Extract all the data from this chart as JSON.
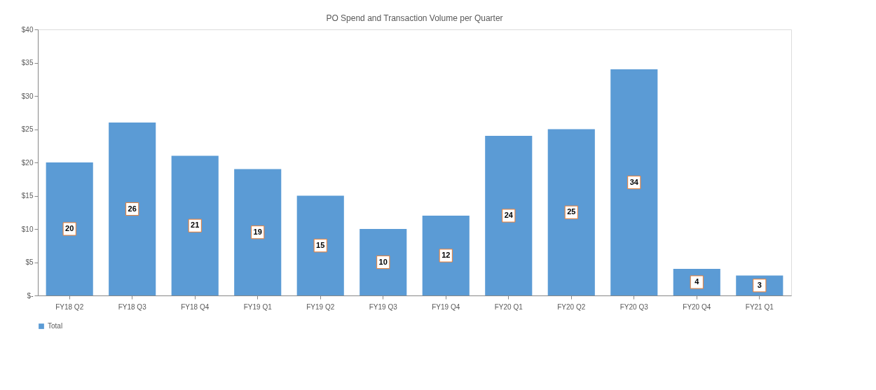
{
  "chart_data": {
    "type": "bar",
    "title": "PO Spend and Transaction Volume per Quarter",
    "categories": [
      "FY18 Q2",
      "FY18 Q3",
      "FY18 Q4",
      "FY19 Q1",
      "FY19 Q2",
      "FY19 Q3",
      "FY19 Q4",
      "FY20 Q1",
      "FY20 Q2",
      "FY20 Q3",
      "FY20 Q4",
      "FY21 Q1"
    ],
    "series": [
      {
        "name": "Total",
        "color": "#5b9bd5",
        "values": [
          20,
          26,
          21,
          19,
          15,
          10,
          12,
          24,
          25,
          34,
          4,
          3
        ]
      }
    ],
    "ylim": [
      0,
      40
    ],
    "yticks": [
      {
        "value": 0,
        "label": "$-"
      },
      {
        "value": 5,
        "label": "$5"
      },
      {
        "value": 10,
        "label": "$10"
      },
      {
        "value": 15,
        "label": "$15"
      },
      {
        "value": 20,
        "label": "$20"
      },
      {
        "value": 25,
        "label": "$25"
      },
      {
        "value": 30,
        "label": "$30"
      },
      {
        "value": 35,
        "label": "$35"
      },
      {
        "value": 40,
        "label": "$40"
      }
    ],
    "data_labels": true,
    "grid": false,
    "legend": "bottom"
  }
}
